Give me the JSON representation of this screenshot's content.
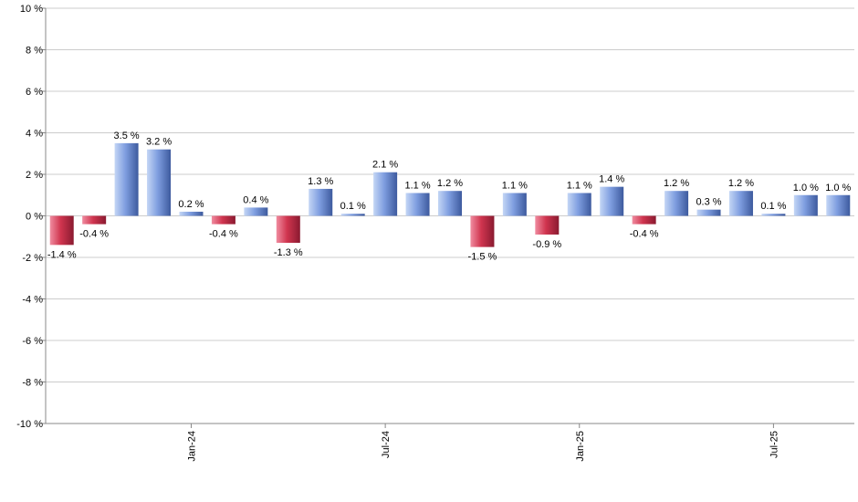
{
  "chart_data": {
    "type": "bar",
    "title": "",
    "xlabel": "",
    "ylabel": "",
    "ylim": [
      -10,
      10
    ],
    "yticks": [
      "10 %",
      "8 %",
      "6 %",
      "4 %",
      "2 %",
      "0 %",
      "-2 %",
      "-4 %",
      "-6 %",
      "-8 %",
      "-10 %"
    ],
    "ytick_values": [
      10,
      8,
      6,
      4,
      2,
      0,
      -2,
      -4,
      -6,
      -8,
      -10
    ],
    "grid": true,
    "values": [
      -1.4,
      -0.4,
      3.5,
      3.2,
      0.2,
      -0.4,
      0.4,
      -1.3,
      1.3,
      0.1,
      2.1,
      1.1,
      1.2,
      -1.5,
      1.1,
      -0.9,
      1.1,
      1.4,
      -0.4,
      1.2,
      0.3,
      1.2,
      0.1,
      1.0,
      1.0
    ],
    "labels": [
      "-1.4 %",
      "-0.4 %",
      "3.5 %",
      "3.2 %",
      "0.2 %",
      "-0.4 %",
      "0.4 %",
      "-1.3 %",
      "1.3 %",
      "0.1 %",
      "2.1 %",
      "1.1 %",
      "1.2 %",
      "-1.5 %",
      "1.1 %",
      "-0.9 %",
      "1.1 %",
      "1.4 %",
      "-0.4 %",
      "1.2 %",
      "0.3 %",
      "1.2 %",
      "0.1 %",
      "1.0 %",
      "1.0 %"
    ],
    "xticks": [
      {
        "label": "Jan-24",
        "index": 4.5
      },
      {
        "label": "Jul-24",
        "index": 10.5
      },
      {
        "label": "Jan-25",
        "index": 16.5
      },
      {
        "label": "Jul-25",
        "index": 22.5
      }
    ],
    "colors": {
      "positive_light": "#c4d6f5",
      "positive_mid": "#7f9ee0",
      "positive_dark": "#3d5a9e",
      "negative_light": "#f08ca0",
      "negative_mid": "#d0354f",
      "negative_dark": "#8a1a30",
      "grid": "#cccccc",
      "axis": "#888888"
    }
  }
}
